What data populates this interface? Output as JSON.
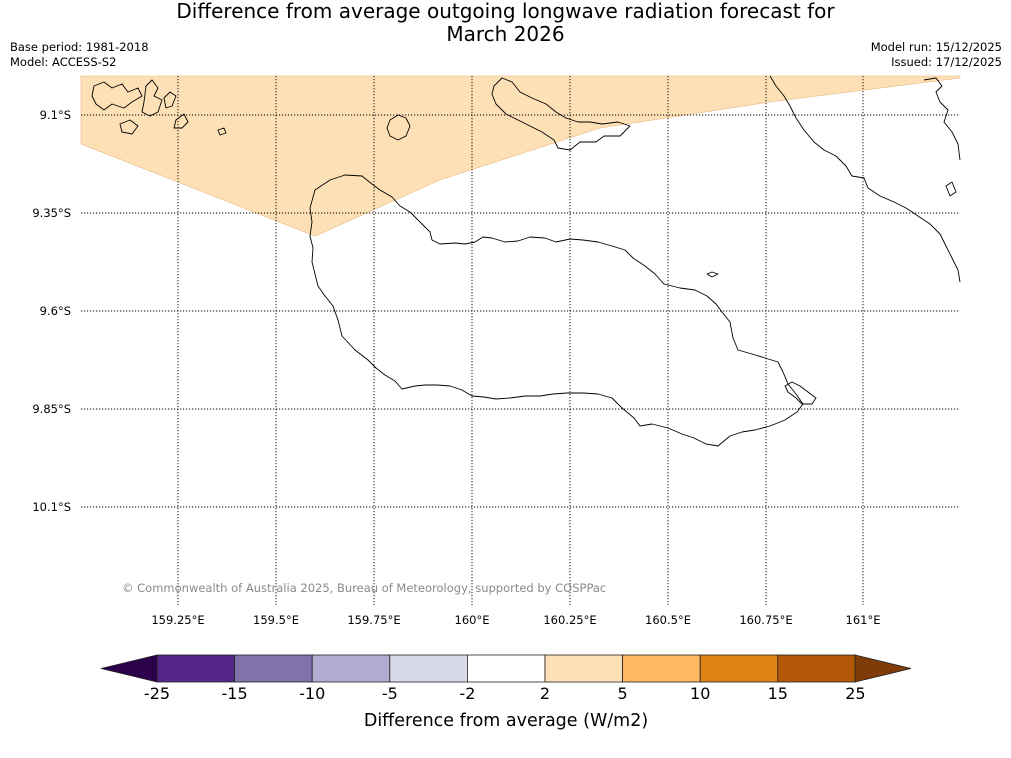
{
  "header": {
    "title": "Difference from average outgoing longwave radiation forecast for\nMarch 2026",
    "base_period": "Base period: 1981-2018",
    "model": "Model: ACCESS-S2",
    "model_run": "Model run: 15/12/2025",
    "issued": "Issued: 17/12/2025"
  },
  "map": {
    "latitude_labels": [
      "9.1°S",
      "9.35°S",
      "9.6°S",
      "9.85°S",
      "10.1°S"
    ],
    "longitude_labels": [
      "159.25°E",
      "159.5°E",
      "159.75°E",
      "160°E",
      "160.25°E",
      "160.5°E",
      "160.75°E",
      "161°E"
    ],
    "copyright": "© Commonwealth of Australia 2025, Bureau of Meteorology, supported by COSPPac",
    "shaded_region": {
      "category": "2 to 5",
      "color": "#fde0b6"
    },
    "coastline_color": "#000000",
    "gridline_style": "dotted"
  },
  "colorbar": {
    "label": "Difference from average (W/m2)",
    "ticks": [
      "-25",
      "-15",
      "-10",
      "-5",
      "-2",
      "2",
      "5",
      "10",
      "15",
      "25"
    ],
    "under_color": "#2d004b",
    "over_color": "#7f3b08",
    "segments": [
      {
        "from": -25,
        "to": -15,
        "color": "#542788"
      },
      {
        "from": -15,
        "to": -10,
        "color": "#8073ac"
      },
      {
        "from": -10,
        "to": -5,
        "color": "#b2abd2"
      },
      {
        "from": -5,
        "to": -2,
        "color": "#d8daeb"
      },
      {
        "from": -2,
        "to": 2,
        "color": "#ffffff"
      },
      {
        "from": 2,
        "to": 5,
        "color": "#fee0b6"
      },
      {
        "from": 5,
        "to": 10,
        "color": "#fdb863"
      },
      {
        "from": 10,
        "to": 15,
        "color": "#e08214"
      },
      {
        "from": 15,
        "to": 25,
        "color": "#b35806"
      }
    ]
  }
}
